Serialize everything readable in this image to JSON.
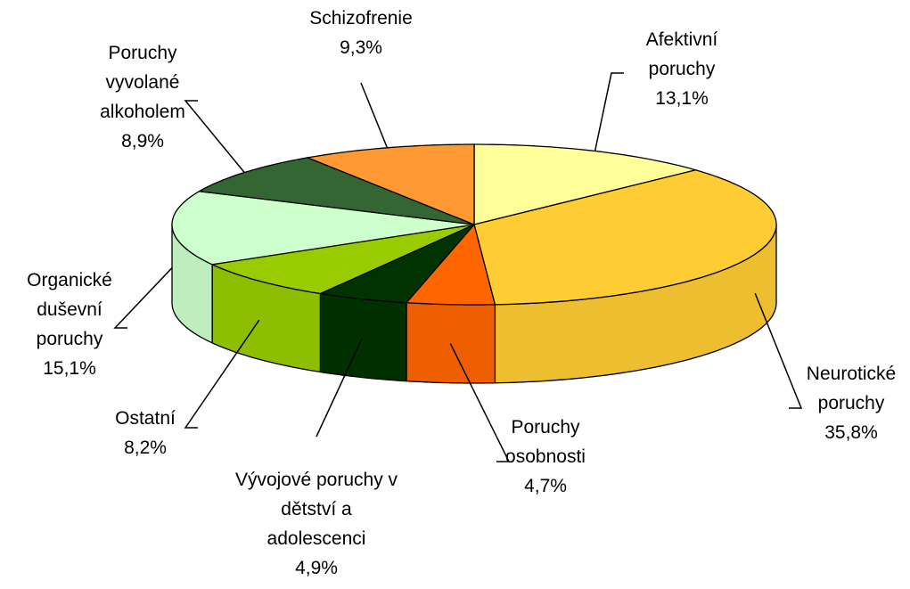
{
  "chart_data": {
    "type": "pie",
    "categories": [
      "Afektivní poruchy",
      "Neurotické poruchy",
      "Poruchy osobnosti",
      "Vývojové poruchy v dětství a adolescenci",
      "Ostatní",
      "Organické duševní poruchy",
      "Poruchy vyvolané alkoholem",
      "Schizofrenie"
    ],
    "values": [
      13.1,
      35.8,
      4.7,
      4.9,
      8.2,
      15.1,
      8.9,
      9.3
    ],
    "value_labels": [
      "13,1%",
      "35,8%",
      "4,7%",
      "4,9%",
      "8,2%",
      "15,1%",
      "8,9%",
      "9,3%"
    ],
    "colors": [
      "#ffff99",
      "#ffcc33",
      "#ff6600",
      "#003300",
      "#99cc00",
      "#ccffcc",
      "#336633",
      "#ff9933"
    ]
  }
}
